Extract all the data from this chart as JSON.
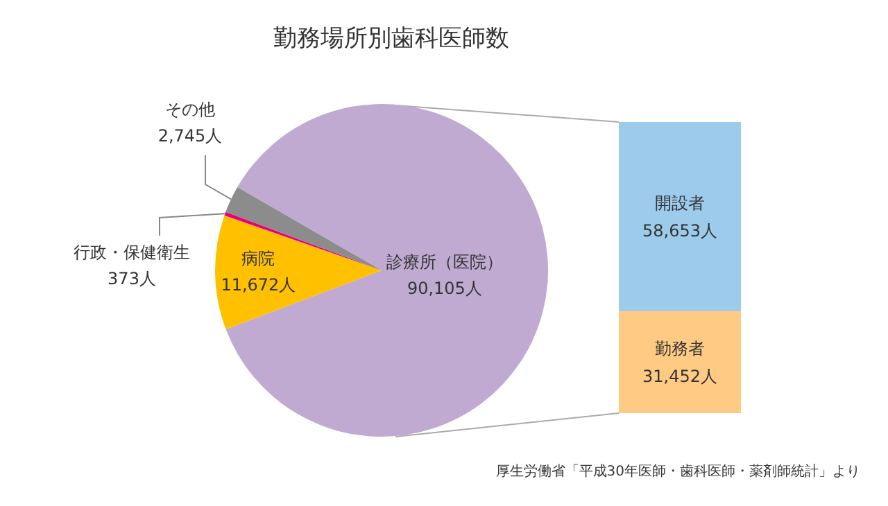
{
  "chart_data": [
    {
      "type": "pie",
      "title": "勤務場所別歯科医師数",
      "categories": [
        "診療所（医院）",
        "病院",
        "行政・保健衛生",
        "その他"
      ],
      "values": [
        90105,
        11672,
        373,
        2745
      ],
      "colors": [
        "#c0aad2",
        "#ffc000",
        "#e6007e",
        "#8c8c8c"
      ],
      "value_labels": [
        "90,105人",
        "11,672人",
        "373人",
        "2,745人"
      ],
      "annotations": [
        "厚生労働省「平成30年医師・歯科医師・薬剤師統計」より"
      ]
    },
    {
      "type": "bar",
      "stacked": true,
      "categories": [
        null
      ],
      "tick_labels": false,
      "series": [
        {
          "name": "勤務者",
          "color": "#ffca84",
          "values": [
            31452
          ],
          "value_labels": [
            "31,452人"
          ]
        },
        {
          "name": "開設者",
          "color": "#9dcbec",
          "values": [
            58653
          ],
          "value_labels": [
            "58,653人"
          ]
        }
      ]
    }
  ]
}
